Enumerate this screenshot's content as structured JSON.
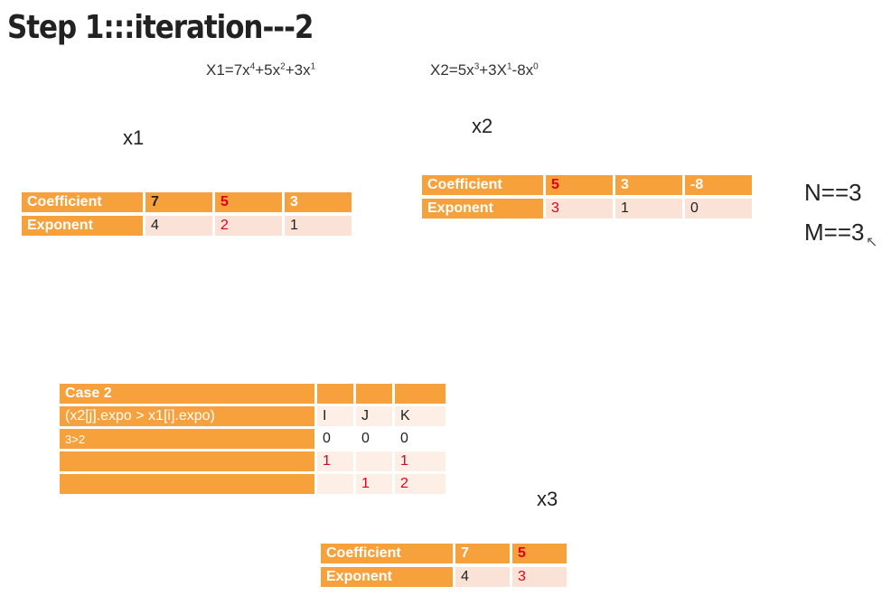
{
  "title": "Step 1:::iteration---2",
  "eq1": {
    "text_parts": [
      "X1=7x",
      "4",
      "+5x",
      "2",
      "+3x",
      "1"
    ]
  },
  "eq2": {
    "text_parts": [
      "X2=5x",
      "3",
      "+3X",
      "1",
      "-8x",
      "0"
    ]
  },
  "labels": {
    "x1": "x1",
    "x2": "x2",
    "x3": "x3"
  },
  "n_value": "N==3",
  "m_value": "M==3",
  "x1_table": {
    "row1_label": "Coefficient",
    "row2_label": "Exponent",
    "coefficients": [
      "7",
      "5",
      "3"
    ],
    "exponents": [
      "4",
      "2",
      "1"
    ]
  },
  "x2_table": {
    "row1_label": "Coefficient",
    "row2_label": "Exponent",
    "coefficients": [
      "5",
      "3",
      "-8"
    ],
    "exponents": [
      "3",
      "1",
      "0"
    ]
  },
  "case_table": {
    "header": "Case 2",
    "condition": "(x2[j].expo > x1[i].expo)",
    "col_headers": [
      "I",
      "J",
      "K"
    ],
    "row_note": "3>2",
    "rows": [
      [
        "0",
        "0",
        "0"
      ],
      [
        "1",
        "",
        "1"
      ],
      [
        "",
        "1",
        "2"
      ]
    ]
  },
  "x3_table": {
    "row1_label": "Coefficient",
    "row2_label": "Exponent",
    "coefficients": [
      "7",
      "5"
    ],
    "exponents": [
      "4",
      "3"
    ]
  },
  "colors": {
    "orange": "#f7a13c",
    "pink": "#fbe2d6",
    "red": "#e0001b"
  }
}
